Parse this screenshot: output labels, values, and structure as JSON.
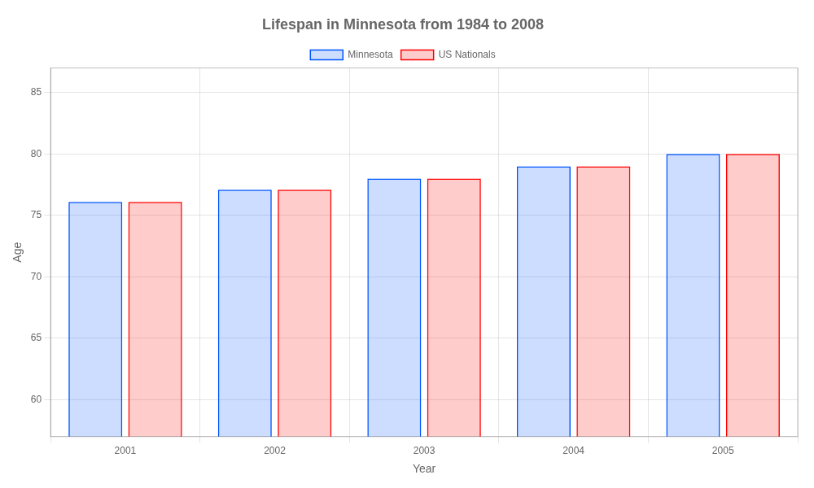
{
  "chart_data": {
    "type": "bar",
    "title": "Lifespan in Minnesota from 1984 to 2008",
    "x_label": "Year",
    "y_label": "Age",
    "categories": [
      "2001",
      "2002",
      "2003",
      "2004",
      "2005"
    ],
    "series": [
      {
        "name": "Minnesota",
        "color": "#0055ff",
        "values": [
          76.1,
          77.1,
          78.0,
          79.0,
          80.0
        ]
      },
      {
        "name": "US Nationals",
        "color": "#ff0000",
        "values": [
          76.1,
          77.1,
          78.0,
          79.0,
          80.0
        ]
      }
    ],
    "ylim": [
      57,
      87
    ],
    "yticks": [
      60,
      65,
      70,
      75,
      80,
      85
    ],
    "grid": true,
    "legend": "top"
  }
}
